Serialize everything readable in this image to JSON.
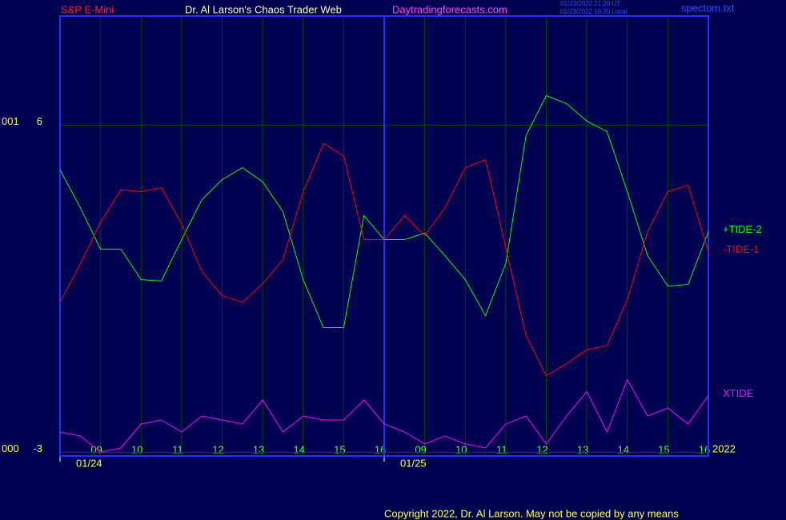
{
  "chart_data": {
    "type": "line",
    "symbol": "S&P E-Mini",
    "title": "Dr. Al Larson's Chaos Trader Web",
    "website": "Daytradingforecasts.com",
    "timestamps": [
      "01/23/2022 21:20 UT",
      "01/23/2022 16:20 Local"
    ],
    "file_name": "spectom.txt",
    "copyright": "Copyright 2022, Dr. Al Larson. May not be copied by any means",
    "year_label": "2022",
    "y_prefix_labels": [
      "001",
      "000"
    ],
    "x": [
      0,
      0.5,
      1,
      1.5,
      2,
      2.5,
      3,
      3.5,
      4,
      4.5,
      5,
      5.5,
      6,
      6.5,
      7,
      7.5,
      8,
      8.5,
      9,
      9.5,
      10,
      10.5,
      11,
      11.5,
      12,
      12.5,
      13,
      13.5,
      14,
      14.5,
      15,
      15.5,
      16
    ],
    "xlim": [
      0,
      16
    ],
    "xticks": [
      {
        "value": 1,
        "label": "09"
      },
      {
        "value": 2,
        "label": "10"
      },
      {
        "value": 3,
        "label": "11"
      },
      {
        "value": 4,
        "label": "12"
      },
      {
        "value": 5,
        "label": "13"
      },
      {
        "value": 6,
        "label": "14"
      },
      {
        "value": 7,
        "label": "15"
      },
      {
        "value": 8,
        "label": "16"
      },
      {
        "value": 9,
        "label": "09"
      },
      {
        "value": 10,
        "label": "10"
      },
      {
        "value": 11,
        "label": "11"
      },
      {
        "value": 12,
        "label": "12"
      },
      {
        "value": 13,
        "label": "13"
      },
      {
        "value": 14,
        "label": "14"
      },
      {
        "value": 15,
        "label": "15"
      },
      {
        "value": 16,
        "label": "16"
      }
    ],
    "date_labels": [
      {
        "value": 0,
        "label": "01/24"
      },
      {
        "value": 8,
        "label": "01/25"
      }
    ],
    "ylim": [
      -3.1,
      9
    ],
    "yticks": [
      -3,
      6
    ],
    "grid": true,
    "series": [
      {
        "name": "+TIDE-2",
        "color": "#00ff00",
        "values": [
          4.77,
          3.73,
          2.59,
          2.59,
          1.75,
          1.71,
          2.85,
          3.95,
          4.5,
          4.83,
          4.44,
          3.62,
          1.75,
          0.43,
          0.43,
          3.51,
          2.85,
          2.85,
          3.03,
          2.41,
          1.75,
          0.76,
          2.19,
          5.71,
          6.81,
          6.59,
          6.11,
          5.82,
          4.17,
          2.41,
          1.57,
          1.62,
          3.07
        ]
      },
      {
        "name": "-TIDE-1",
        "color": "#ff0000",
        "values": [
          1.13,
          2.19,
          3.33,
          4.22,
          4.17,
          4.28,
          3.29,
          1.97,
          1.31,
          1.13,
          1.64,
          2.3,
          4.17,
          5.49,
          5.16,
          2.85,
          2.85,
          3.51,
          2.96,
          3.73,
          4.83,
          5.05,
          2.63,
          0.21,
          -0.89,
          -0.56,
          -0.17,
          -0.06,
          1.2,
          3.07,
          4.17,
          4.35,
          2.52
        ]
      },
      {
        "name": "XTIDE",
        "color": "#ff00ff",
        "values": [
          -2.44,
          -2.55,
          -2.99,
          -2.88,
          -2.22,
          -2.11,
          -2.44,
          -2.0,
          -2.11,
          -2.22,
          -1.56,
          -2.44,
          -2.0,
          -2.11,
          -2.11,
          -1.56,
          -2.22,
          -2.44,
          -2.77,
          -2.55,
          -2.77,
          -2.88,
          -2.22,
          -2.0,
          -2.77,
          -2.0,
          -1.33,
          -2.44,
          -1.0,
          -2.0,
          -1.78,
          -2.22,
          -1.44
        ]
      }
    ]
  }
}
